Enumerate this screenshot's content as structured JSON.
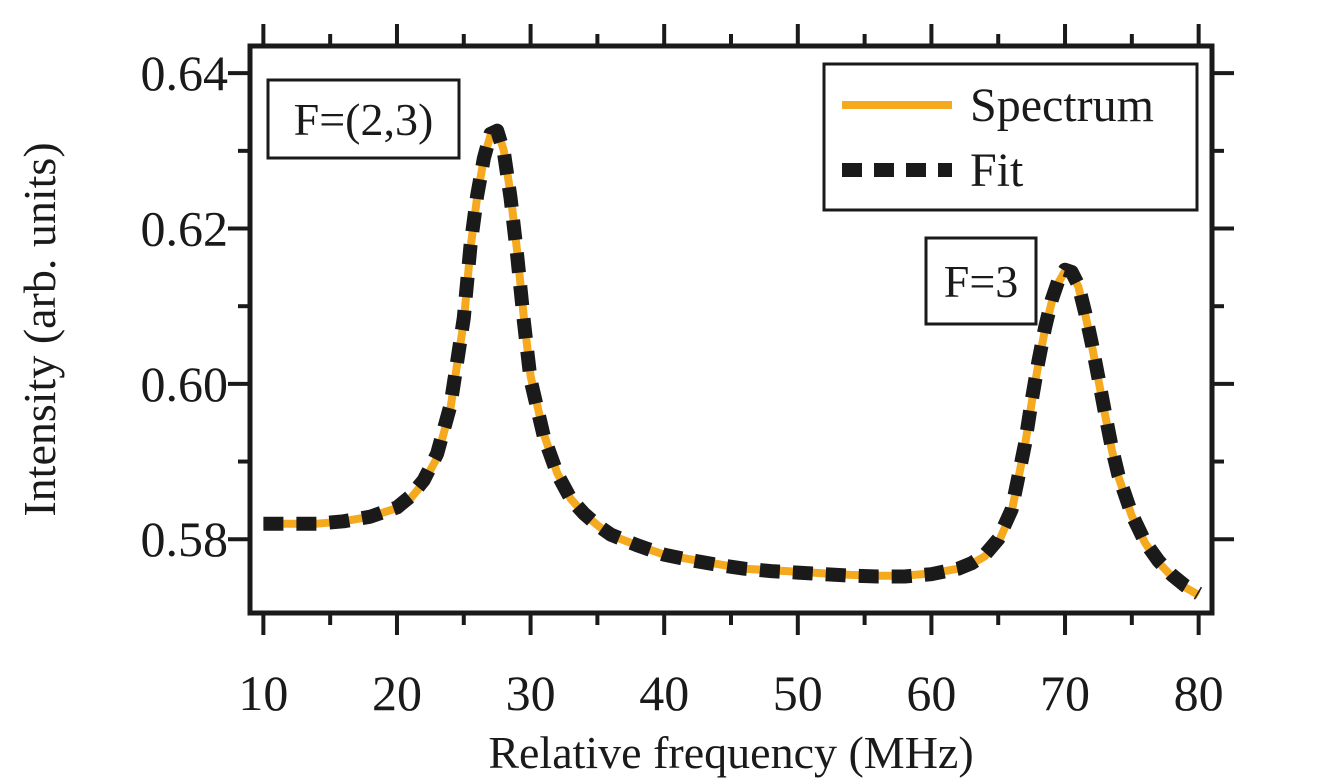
{
  "chart_data": {
    "type": "line",
    "title": "",
    "xlabel": "Relative frequency (MHz)",
    "ylabel": "Intensity (arb. units)",
    "xlim": [
      9,
      81
    ],
    "ylim": [
      0.5705,
      0.6435
    ],
    "x_ticks": [
      10,
      20,
      30,
      40,
      50,
      60,
      70,
      80
    ],
    "y_ticks": [
      0.58,
      0.6,
      0.62,
      0.64
    ],
    "x_tick_labels": [
      "10",
      "20",
      "30",
      "40",
      "50",
      "60",
      "70",
      "80"
    ],
    "y_tick_labels": [
      "0.58",
      "0.60",
      "0.62",
      "0.64"
    ],
    "grid": false,
    "legend": {
      "position": "top-right",
      "entries": [
        "Spectrum",
        "Fit"
      ]
    },
    "series": [
      {
        "name": "Spectrum",
        "style": "solid",
        "color": "#f5a91f",
        "x": [
          10,
          12,
          14,
          16,
          18,
          20,
          21,
          22,
          23,
          24,
          24.5,
          25,
          25.5,
          26,
          26.5,
          27,
          27.5,
          28,
          28.5,
          29,
          29.5,
          30,
          31,
          32,
          33,
          34,
          35,
          36,
          38,
          40,
          42,
          44,
          46,
          48,
          50,
          52,
          54,
          56,
          58,
          60,
          62,
          63,
          64,
          65,
          66,
          66.5,
          67,
          67.5,
          68,
          68.5,
          69,
          69.5,
          70,
          70.5,
          71,
          71.5,
          72,
          72.5,
          73,
          73.5,
          74,
          75,
          76,
          77,
          78,
          79,
          80
        ],
        "y": [
          0.582,
          0.582,
          0.582,
          0.5823,
          0.5829,
          0.584,
          0.5852,
          0.5873,
          0.5905,
          0.5968,
          0.6025,
          0.608,
          0.6175,
          0.624,
          0.629,
          0.632,
          0.6328,
          0.63,
          0.6245,
          0.617,
          0.6085,
          0.601,
          0.5935,
          0.5885,
          0.5852,
          0.5833,
          0.5818,
          0.5805,
          0.5792,
          0.578,
          0.5774,
          0.5768,
          0.5762,
          0.576,
          0.5758,
          0.5756,
          0.5754,
          0.5753,
          0.5753,
          0.5756,
          0.5762,
          0.5768,
          0.5778,
          0.5795,
          0.5835,
          0.5878,
          0.592,
          0.5975,
          0.6025,
          0.607,
          0.6105,
          0.613,
          0.6145,
          0.6142,
          0.6125,
          0.609,
          0.605,
          0.6005,
          0.596,
          0.5915,
          0.588,
          0.583,
          0.5795,
          0.577,
          0.5752,
          0.5738,
          0.5728
        ]
      },
      {
        "name": "Fit",
        "style": "dashed",
        "color": "#1a1a1a",
        "x": [
          10,
          12,
          14,
          16,
          18,
          20,
          21,
          22,
          23,
          24,
          24.5,
          25,
          25.5,
          26,
          26.5,
          27,
          27.5,
          28,
          28.5,
          29,
          29.5,
          30,
          31,
          32,
          33,
          34,
          35,
          36,
          38,
          40,
          42,
          44,
          46,
          48,
          50,
          52,
          54,
          56,
          58,
          60,
          62,
          63,
          64,
          65,
          66,
          66.5,
          67,
          67.5,
          68,
          68.5,
          69,
          69.5,
          70,
          70.5,
          71,
          71.5,
          72,
          72.5,
          73,
          73.5,
          74,
          75,
          76,
          77,
          78,
          79,
          80
        ],
        "y": [
          0.582,
          0.582,
          0.582,
          0.5823,
          0.5829,
          0.5841,
          0.5855,
          0.5876,
          0.591,
          0.5972,
          0.6028,
          0.6085,
          0.6178,
          0.6242,
          0.629,
          0.6322,
          0.6326,
          0.6298,
          0.624,
          0.6165,
          0.608,
          0.6005,
          0.5932,
          0.5884,
          0.5852,
          0.5833,
          0.5818,
          0.5806,
          0.5792,
          0.578,
          0.5773,
          0.5767,
          0.5762,
          0.5759,
          0.5757,
          0.5755,
          0.5753,
          0.5752,
          0.5752,
          0.5755,
          0.5762,
          0.5769,
          0.578,
          0.58,
          0.5838,
          0.588,
          0.5922,
          0.5978,
          0.6028,
          0.6072,
          0.6108,
          0.6133,
          0.6147,
          0.6144,
          0.6127,
          0.6092,
          0.6052,
          0.6008,
          0.5962,
          0.5918,
          0.5882,
          0.5832,
          0.5796,
          0.5772,
          0.5754,
          0.574,
          0.573
        ]
      }
    ],
    "annotations": [
      {
        "text": "F=(2,3)",
        "x": 27,
        "y": 0.6325
      },
      {
        "text": "F=3",
        "x": 70.5,
        "y": 0.6145
      }
    ]
  }
}
